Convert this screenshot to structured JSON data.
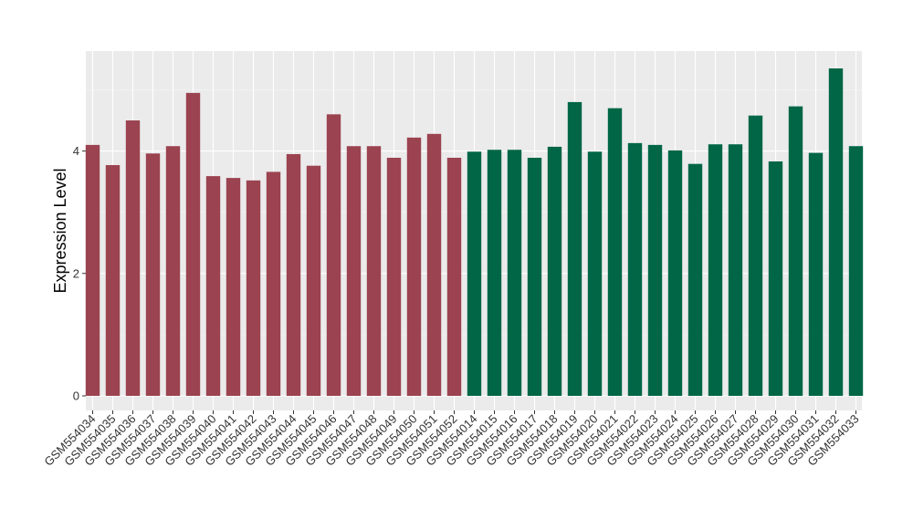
{
  "chart_data": {
    "type": "bar",
    "ylabel": "Expression Level",
    "xlabel": "",
    "ylim": [
      0,
      5.6
    ],
    "yticks": [
      0,
      2,
      4
    ],
    "grid": true,
    "categories": [
      "GSM554034",
      "GSM554035",
      "GSM554036",
      "GSM554037",
      "GSM554038",
      "GSM554039",
      "GSM554040",
      "GSM554041",
      "GSM554042",
      "GSM554043",
      "GSM554044",
      "GSM554045",
      "GSM554046",
      "GSM554047",
      "GSM554048",
      "GSM554049",
      "GSM554050",
      "GSM554051",
      "GSM554052",
      "GSM554014",
      "GSM554015",
      "GSM554016",
      "GSM554017",
      "GSM554018",
      "GSM554019",
      "GSM554020",
      "GSM554021",
      "GSM554022",
      "GSM554023",
      "GSM554024",
      "GSM554025",
      "GSM554026",
      "GSM554027",
      "GSM554028",
      "GSM554029",
      "GSM554030",
      "GSM554031",
      "GSM554032",
      "GSM554033"
    ],
    "values": [
      4.1,
      3.77,
      4.5,
      3.96,
      4.08,
      4.95,
      3.59,
      3.56,
      3.52,
      3.66,
      3.95,
      3.76,
      4.6,
      4.08,
      4.08,
      3.89,
      4.22,
      4.28,
      3.89,
      3.99,
      4.02,
      4.02,
      3.89,
      4.07,
      4.8,
      3.99,
      4.7,
      4.13,
      4.1,
      4.01,
      3.79,
      4.11,
      4.11,
      4.58,
      3.83,
      4.73,
      3.97,
      5.35,
      4.08
    ],
    "groups": [
      {
        "color": "#9b4350",
        "count": 19
      },
      {
        "color": "#006646",
        "count": 20
      }
    ]
  },
  "colors": {
    "panel_background": "#ebebeb",
    "grid_major": "#ffffff",
    "grid_minor": "#f5f5f5",
    "tick_text": "#333333"
  }
}
